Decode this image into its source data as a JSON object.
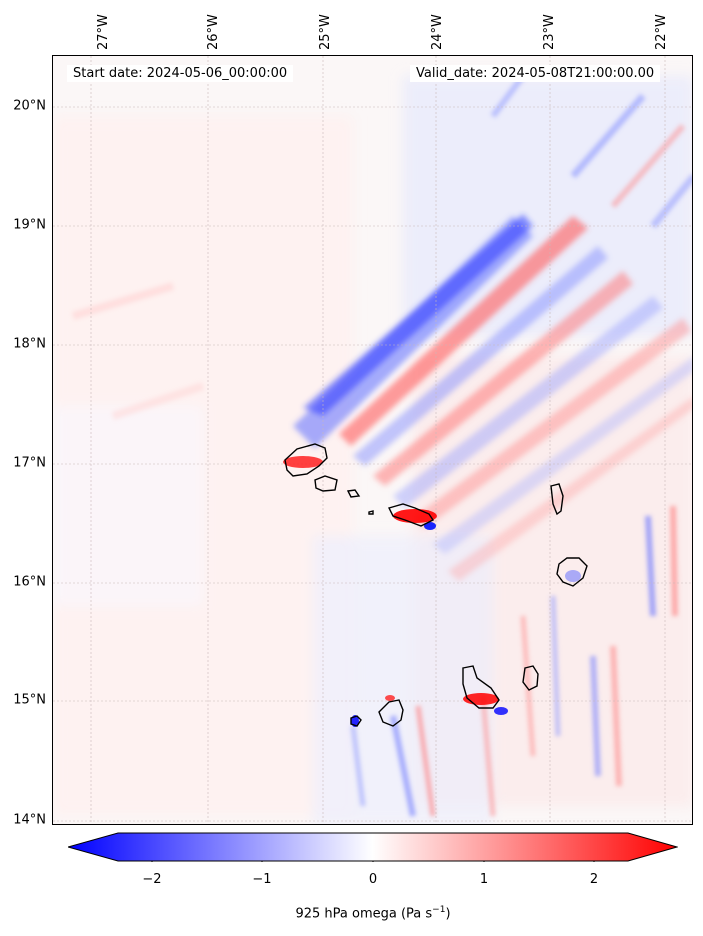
{
  "header": {
    "start_date": "Start date: 2024-05-06_00:00:00",
    "valid_date": "Valid_date: 2024-05-08T21:00:00.00"
  },
  "map": {
    "lon_labels": [
      "27°W",
      "26°W",
      "25°W",
      "24°W",
      "23°W",
      "22°W"
    ],
    "lat_labels": [
      "20°N",
      "19°N",
      "18°N",
      "17°N",
      "16°N",
      "15°N",
      "14°N"
    ],
    "field_colors": {
      "negative": "#0000ff",
      "neutral": "#ffffff",
      "positive": "#ff0000"
    },
    "features": [
      "Santo Antão",
      "São Vicente",
      "Santa Luzia",
      "São Nicolau",
      "Sal",
      "Boa Vista",
      "Maio",
      "Santiago",
      "Fogo",
      "Brava"
    ]
  },
  "colorbar": {
    "ticks": [
      "−2",
      "−1",
      "0",
      "1",
      "2"
    ],
    "label": "925 hPa omega (Pa s",
    "label_sup": "−1",
    "label_end": ")",
    "vmin": -2.6,
    "vmax": 2.6,
    "extend": "both"
  }
}
